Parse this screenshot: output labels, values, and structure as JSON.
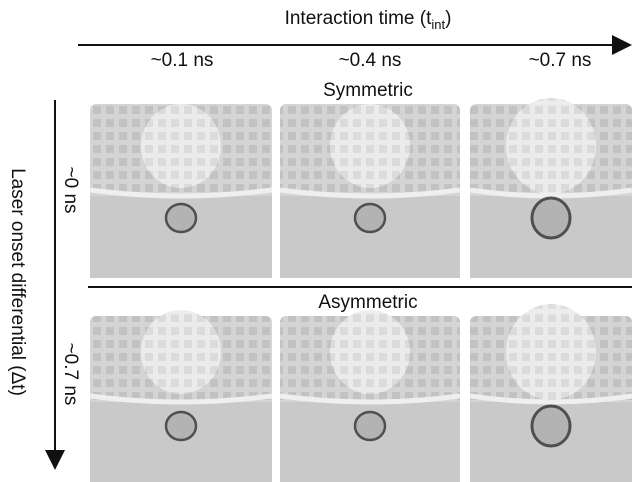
{
  "x_axis": {
    "label": "Interaction time (t",
    "subscript": "int",
    "suffix": ")"
  },
  "columns": [
    "~0.1 ns",
    "~0.4 ns",
    "~0.7 ns"
  ],
  "y_axis": {
    "label": "Laser onset differential (Δt)"
  },
  "rows": [
    "~0 ns",
    "~0.7 ns"
  ],
  "sections": [
    "Symmetric",
    "Asymmetric"
  ]
}
